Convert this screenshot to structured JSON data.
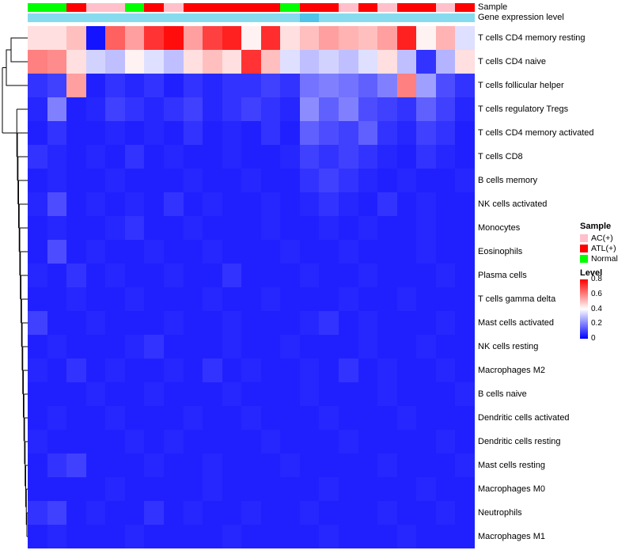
{
  "annotations": {
    "sample_label": "Sample",
    "gene_expression_label": "Gene expression level"
  },
  "legend": {
    "sample_title": "Sample",
    "sample_entries": [
      {
        "label": "AC(+)",
        "color": "#FFC0CB"
      },
      {
        "label": "ATL(+)",
        "color": "#FF0000"
      },
      {
        "label": "Normal",
        "color": "#00FF00"
      }
    ],
    "level_title": "Level",
    "level_ticks": [
      {
        "label": "0.8",
        "value": 0.8
      },
      {
        "label": "0.6",
        "value": 0.6
      },
      {
        "label": "0.4",
        "value": 0.4
      },
      {
        "label": "0.2",
        "value": 0.2
      },
      {
        "label": "0",
        "value": 0.0
      }
    ]
  },
  "chart_data": {
    "type": "heatmap",
    "title": "",
    "row_labels": [
      "T cells CD4 memory resting",
      "T cells CD4 naive",
      "T cells follicular helper",
      "T cells regulatory Tregs",
      "T cells CD4 memory activated",
      "T cells CD8",
      "B cells memory",
      "NK cells activated",
      "Monocytes",
      "Eosinophils",
      "Plasma cells",
      "T cells gamma delta",
      "Mast cells activated",
      "NK cells resting",
      "Macrophages M2",
      "B cells naive",
      "Dendritic cells activated",
      "Dendritic cells resting",
      "Mast cells resting",
      "Macrophages M0",
      "Neutrophils",
      "Macrophages M1"
    ],
    "n_columns": 23,
    "column_sample_groups": [
      "Normal",
      "Normal",
      "ATL(+)",
      "AC(+)",
      "AC(+)",
      "Normal",
      "ATL(+)",
      "AC(+)",
      "ATL(+)",
      "ATL(+)",
      "ATL(+)",
      "ATL(+)",
      "ATL(+)",
      "Normal",
      "ATL(+)",
      "ATL(+)",
      "AC(+)",
      "ATL(+)",
      "AC(+)",
      "ATL(+)",
      "ATL(+)",
      "AC(+)",
      "ATL(+)"
    ],
    "gene_expression_colors": [
      "#87DBEF",
      "#87DBEF",
      "#87DBEF",
      "#87DBEF",
      "#87DBEF",
      "#87DBEF",
      "#87DBEF",
      "#87DBEF",
      "#87DBEF",
      "#87DBEF",
      "#87DBEF",
      "#87DBEF",
      "#87DBEF",
      "#87DBEF",
      "#4FC3E8",
      "#87DBEF",
      "#87DBEF",
      "#87DBEF",
      "#87DBEF",
      "#87DBEF",
      "#87DBEF",
      "#87DBEF",
      "#87DBEF"
    ],
    "color_scale": {
      "min": 0,
      "mid": 0.4,
      "max": 0.8,
      "min_color": "#0000FF",
      "mid_color": "#FFFFFF",
      "max_color": "#FF0000"
    },
    "values": [
      [
        0.45,
        0.45,
        0.5,
        0.03,
        0.65,
        0.55,
        0.72,
        0.78,
        0.55,
        0.7,
        0.75,
        0.42,
        0.73,
        0.45,
        0.5,
        0.55,
        0.52,
        0.5,
        0.55,
        0.75,
        0.42,
        0.52,
        0.35
      ],
      [
        0.6,
        0.58,
        0.45,
        0.33,
        0.3,
        0.42,
        0.35,
        0.3,
        0.45,
        0.5,
        0.45,
        0.72,
        0.5,
        0.35,
        0.3,
        0.33,
        0.3,
        0.35,
        0.45,
        0.3,
        0.08,
        0.28,
        0.45
      ],
      [
        0.08,
        0.1,
        0.55,
        0.05,
        0.08,
        0.06,
        0.08,
        0.05,
        0.08,
        0.06,
        0.08,
        0.08,
        0.1,
        0.08,
        0.18,
        0.2,
        0.18,
        0.15,
        0.2,
        0.6,
        0.25,
        0.12,
        0.08
      ],
      [
        0.06,
        0.2,
        0.05,
        0.06,
        0.1,
        0.08,
        0.06,
        0.08,
        0.1,
        0.06,
        0.08,
        0.1,
        0.08,
        0.06,
        0.22,
        0.15,
        0.2,
        0.12,
        0.1,
        0.08,
        0.15,
        0.1,
        0.06
      ],
      [
        0.05,
        0.08,
        0.05,
        0.05,
        0.06,
        0.05,
        0.06,
        0.05,
        0.08,
        0.05,
        0.06,
        0.05,
        0.08,
        0.05,
        0.15,
        0.12,
        0.1,
        0.15,
        0.08,
        0.06,
        0.1,
        0.08,
        0.05
      ],
      [
        0.08,
        0.06,
        0.05,
        0.06,
        0.05,
        0.08,
        0.05,
        0.06,
        0.05,
        0.05,
        0.06,
        0.05,
        0.05,
        0.06,
        0.1,
        0.08,
        0.1,
        0.08,
        0.06,
        0.05,
        0.08,
        0.06,
        0.05
      ],
      [
        0.05,
        0.06,
        0.05,
        0.05,
        0.06,
        0.05,
        0.05,
        0.05,
        0.06,
        0.05,
        0.05,
        0.06,
        0.05,
        0.05,
        0.08,
        0.1,
        0.08,
        0.06,
        0.05,
        0.06,
        0.05,
        0.05,
        0.06
      ],
      [
        0.06,
        0.12,
        0.05,
        0.06,
        0.05,
        0.06,
        0.05,
        0.08,
        0.05,
        0.06,
        0.05,
        0.05,
        0.06,
        0.05,
        0.06,
        0.08,
        0.06,
        0.05,
        0.08,
        0.05,
        0.06,
        0.05,
        0.05
      ],
      [
        0.05,
        0.06,
        0.05,
        0.05,
        0.06,
        0.08,
        0.05,
        0.05,
        0.06,
        0.05,
        0.05,
        0.05,
        0.06,
        0.05,
        0.05,
        0.06,
        0.05,
        0.06,
        0.05,
        0.05,
        0.06,
        0.05,
        0.05
      ],
      [
        0.05,
        0.12,
        0.05,
        0.06,
        0.05,
        0.05,
        0.06,
        0.05,
        0.05,
        0.06,
        0.05,
        0.05,
        0.05,
        0.06,
        0.05,
        0.05,
        0.06,
        0.05,
        0.05,
        0.05,
        0.06,
        0.05,
        0.05
      ],
      [
        0.06,
        0.05,
        0.08,
        0.05,
        0.06,
        0.05,
        0.05,
        0.06,
        0.05,
        0.05,
        0.08,
        0.05,
        0.05,
        0.05,
        0.06,
        0.05,
        0.05,
        0.06,
        0.05,
        0.05,
        0.05,
        0.06,
        0.05
      ],
      [
        0.05,
        0.05,
        0.06,
        0.05,
        0.05,
        0.06,
        0.05,
        0.05,
        0.05,
        0.06,
        0.05,
        0.05,
        0.06,
        0.05,
        0.05,
        0.05,
        0.06,
        0.05,
        0.05,
        0.06,
        0.05,
        0.05,
        0.05
      ],
      [
        0.1,
        0.05,
        0.05,
        0.06,
        0.05,
        0.05,
        0.05,
        0.06,
        0.05,
        0.05,
        0.06,
        0.05,
        0.05,
        0.05,
        0.06,
        0.08,
        0.05,
        0.06,
        0.05,
        0.05,
        0.05,
        0.06,
        0.05
      ],
      [
        0.05,
        0.06,
        0.05,
        0.05,
        0.05,
        0.06,
        0.08,
        0.05,
        0.05,
        0.05,
        0.06,
        0.05,
        0.05,
        0.06,
        0.05,
        0.05,
        0.05,
        0.06,
        0.05,
        0.05,
        0.06,
        0.05,
        0.05
      ],
      [
        0.06,
        0.05,
        0.08,
        0.05,
        0.06,
        0.05,
        0.05,
        0.06,
        0.05,
        0.08,
        0.05,
        0.06,
        0.05,
        0.05,
        0.06,
        0.05,
        0.08,
        0.05,
        0.06,
        0.05,
        0.05,
        0.06,
        0.05
      ],
      [
        0.05,
        0.05,
        0.05,
        0.06,
        0.05,
        0.05,
        0.06,
        0.05,
        0.05,
        0.05,
        0.06,
        0.05,
        0.05,
        0.05,
        0.06,
        0.05,
        0.05,
        0.05,
        0.06,
        0.05,
        0.05,
        0.05,
        0.06
      ],
      [
        0.05,
        0.06,
        0.05,
        0.05,
        0.06,
        0.05,
        0.05,
        0.05,
        0.06,
        0.05,
        0.05,
        0.06,
        0.05,
        0.05,
        0.05,
        0.06,
        0.05,
        0.05,
        0.05,
        0.06,
        0.05,
        0.05,
        0.05
      ],
      [
        0.06,
        0.05,
        0.05,
        0.05,
        0.05,
        0.06,
        0.05,
        0.06,
        0.05,
        0.05,
        0.05,
        0.05,
        0.06,
        0.05,
        0.05,
        0.05,
        0.06,
        0.05,
        0.05,
        0.05,
        0.05,
        0.06,
        0.05
      ],
      [
        0.05,
        0.08,
        0.1,
        0.05,
        0.05,
        0.05,
        0.06,
        0.05,
        0.05,
        0.06,
        0.05,
        0.05,
        0.05,
        0.06,
        0.05,
        0.05,
        0.05,
        0.05,
        0.06,
        0.05,
        0.05,
        0.05,
        0.06
      ],
      [
        0.05,
        0.05,
        0.05,
        0.05,
        0.06,
        0.05,
        0.05,
        0.05,
        0.05,
        0.06,
        0.05,
        0.05,
        0.05,
        0.05,
        0.05,
        0.06,
        0.05,
        0.05,
        0.05,
        0.05,
        0.06,
        0.05,
        0.05
      ],
      [
        0.08,
        0.1,
        0.05,
        0.06,
        0.05,
        0.05,
        0.08,
        0.05,
        0.06,
        0.05,
        0.05,
        0.06,
        0.05,
        0.05,
        0.06,
        0.05,
        0.05,
        0.05,
        0.06,
        0.05,
        0.05,
        0.06,
        0.05
      ],
      [
        0.05,
        0.06,
        0.05,
        0.05,
        0.05,
        0.06,
        0.05,
        0.05,
        0.05,
        0.05,
        0.06,
        0.05,
        0.05,
        0.05,
        0.05,
        0.06,
        0.05,
        0.05,
        0.05,
        0.06,
        0.05,
        0.05,
        0.05
      ]
    ]
  }
}
